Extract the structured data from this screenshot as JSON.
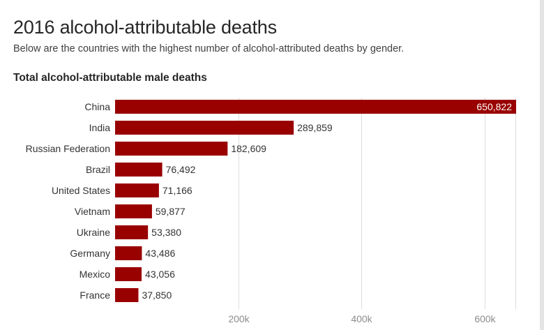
{
  "header": {
    "title": "2016 alcohol-attributable deaths",
    "subtitle": "Below are the countries with the highest number of alcohol-attributed deaths by gender."
  },
  "colors": {
    "bar": "#990000",
    "grid": "#dcdcdc",
    "label": "#333333",
    "tick": "#8c8c8c",
    "inside_label": "#ffffff"
  },
  "chart_data": {
    "type": "bar",
    "orientation": "horizontal",
    "title": "Total alcohol-attributable male deaths",
    "categories": [
      "China",
      "India",
      "Russian Federation",
      "Brazil",
      "United States",
      "Vietnam",
      "Ukraine",
      "Germany",
      "Mexico",
      "France"
    ],
    "values": [
      650822,
      289859,
      182609,
      76492,
      71166,
      59877,
      53380,
      43486,
      43056,
      37850
    ],
    "value_labels": [
      "650,822",
      "289,859",
      "182,609",
      "76,492",
      "71,166",
      "59,877",
      "53,380",
      "43,486",
      "43,056",
      "37,850"
    ],
    "xticks": [
      200000,
      400000,
      600000
    ],
    "xtick_labels": [
      "200k",
      "400k",
      "600k"
    ],
    "xlim": [
      0,
      650822
    ],
    "grid": true,
    "xlabel": "",
    "ylabel": ""
  }
}
